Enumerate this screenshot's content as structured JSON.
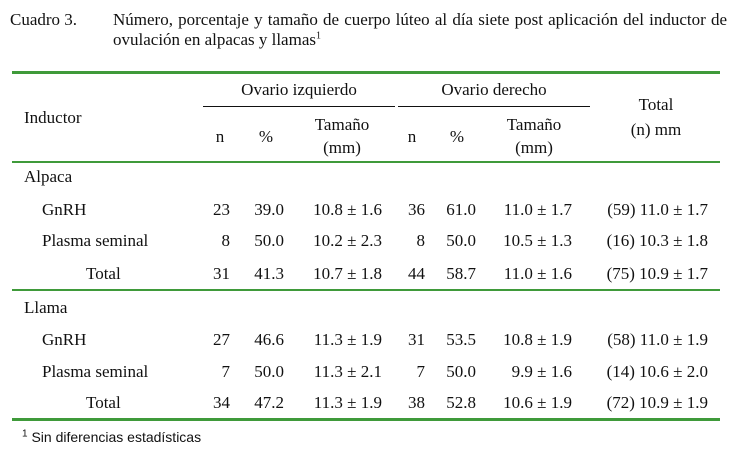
{
  "caption": {
    "number": "Cuadro 3.",
    "text": "Número, porcentaje y tamaño de cuerpo lúteo al día siete post aplicación del inductor de ovulación en alpacas y llamas",
    "footnote_mark": "1"
  },
  "header": {
    "inductor": "Inductor",
    "left_ovary": "Ovario izquierdo",
    "right_ovary": "Ovario derecho",
    "total_line1": "Total",
    "total_line2": "(n) mm",
    "n": "n",
    "pct": "%",
    "size_line1": "Tamaño",
    "size_line2": "(mm)"
  },
  "groups": [
    {
      "name": "Alpaca",
      "rows": [
        {
          "label": "GnRH",
          "ln": "23",
          "lp": "39.0",
          "ls": "10.8 ± 1.6",
          "rn": "36",
          "rp": "61.0",
          "rs": "11.0 ± 1.7",
          "total": "(59) 11.0 ± 1.7"
        },
        {
          "label": "Plasma seminal",
          "ln": "8",
          "lp": "50.0",
          "ls": "10.2 ± 2.3",
          "rn": "8",
          "rp": "50.0",
          "rs": "10.5 ± 1.3",
          "total": "(16) 10.3 ± 1.8"
        }
      ],
      "total": {
        "label": "Total",
        "ln": "31",
        "lp": "41.3",
        "ls": "10.7 ± 1.8",
        "rn": "44",
        "rp": "58.7",
        "rs": "11.0 ± 1.6",
        "total": "(75) 10.9 ± 1.7"
      }
    },
    {
      "name": "Llama",
      "rows": [
        {
          "label": "GnRH",
          "ln": "27",
          "lp": "46.6",
          "ls": "11.3 ± 1.9",
          "rn": "31",
          "rp": "53.5",
          "rs": "10.8 ± 1.9",
          "total": "(58) 11.0 ± 1.9"
        },
        {
          "label": "Plasma seminal",
          "ln": "7",
          "lp": "50.0",
          "ls": "11.3 ± 2.1",
          "rn": "7",
          "rp": "50.0",
          "rs": "9.9 ± 1.6",
          "total": "(14) 10.6 ± 2.0"
        }
      ],
      "total": {
        "label": "Total",
        "ln": "34",
        "lp": "47.2",
        "ls": "11.3 ± 1.9",
        "rn": "38",
        "rp": "52.8",
        "rs": "10.6 ± 1.9",
        "total": "(72) 10.9 ± 1.9"
      }
    }
  ],
  "footnote": {
    "mark": "1",
    "text": "Sin diferencias estadísticas"
  },
  "colors": {
    "rule": "#3f9a3a",
    "text": "#111111"
  }
}
